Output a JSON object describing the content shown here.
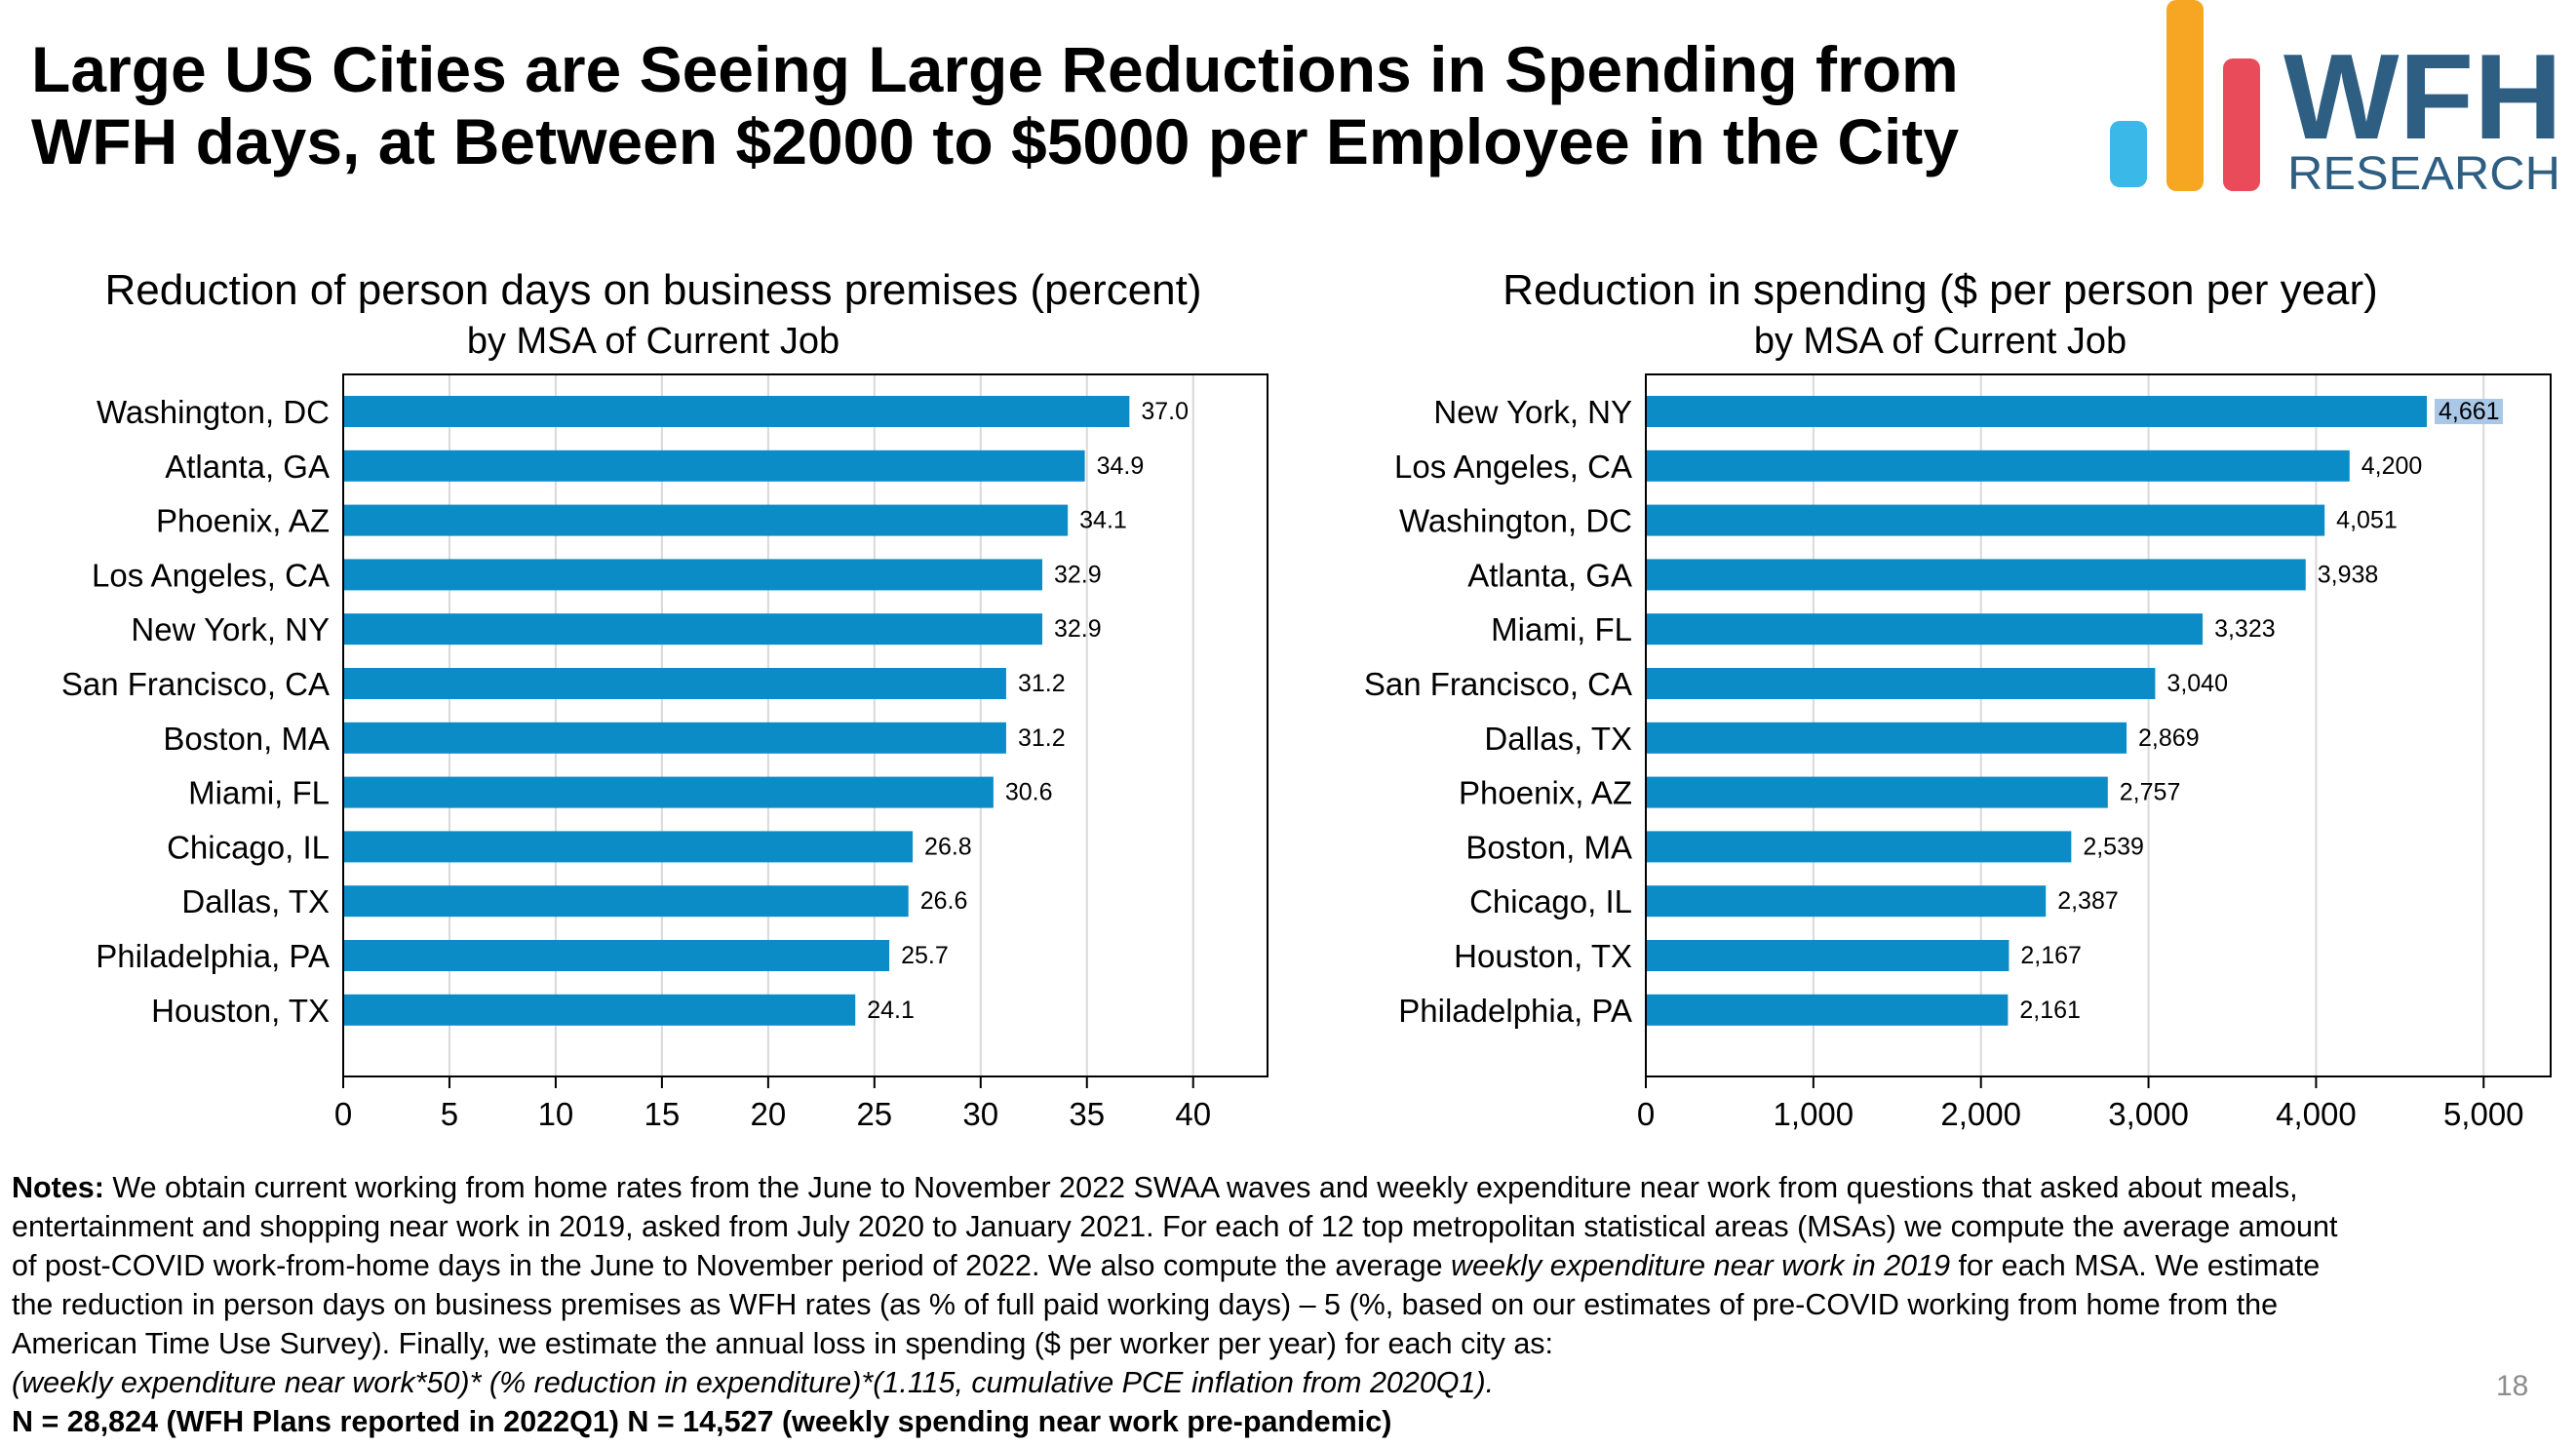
{
  "title": {
    "line1": "Large US Cities are Seeing Large Reductions in Spending from",
    "line2": "WFH days, at Between $2000 to $5000 per Employee in the City"
  },
  "logo": {
    "word": "WFH",
    "sub": "RESEARCH",
    "colors": {
      "blue_bar": "#3AB8E8",
      "orange_bar": "#F6A623",
      "red_bar": "#EA4B5A",
      "text": "#2E5F83"
    }
  },
  "colors": {
    "bar": "#0B8CC6",
    "grid": "#d9d9d9",
    "axis": "#000000",
    "highlight": "#A9C8E8"
  },
  "chart_data": [
    {
      "type": "bar",
      "orientation": "horizontal",
      "title": "Reduction of person days on business premises (percent)",
      "subtitle": "by MSA of Current Job",
      "categories": [
        "Washington, DC",
        "Atlanta, GA",
        "Phoenix, AZ",
        "Los Angeles, CA",
        "New York, NY",
        "San Francisco, CA",
        "Boston, MA",
        "Miami, FL",
        "Chicago, IL",
        "Dallas, TX",
        "Philadelphia, PA",
        "Houston, TX"
      ],
      "values": [
        37.0,
        34.9,
        34.1,
        32.9,
        32.9,
        31.2,
        31.2,
        30.6,
        26.8,
        26.6,
        25.7,
        24.1
      ],
      "value_labels": [
        "37.0",
        "34.9",
        "34.1",
        "32.9",
        "32.9",
        "31.2",
        "31.2",
        "30.6",
        "26.8",
        "26.6",
        "25.7",
        "24.1"
      ],
      "xlim": [
        0,
        43.5
      ],
      "ticks": [
        0,
        5,
        10,
        15,
        20,
        25,
        30,
        35,
        40
      ],
      "tick_labels": [
        "0",
        "5",
        "10",
        "15",
        "20",
        "25",
        "30",
        "35",
        "40"
      ],
      "grid": true
    },
    {
      "type": "bar",
      "orientation": "horizontal",
      "title": "Reduction in spending ($ per person per year)",
      "subtitle": "by MSA of Current Job",
      "categories": [
        "New York, NY",
        "Los Angeles, CA",
        "Washington, DC",
        "Atlanta, GA",
        "Miami, FL",
        "San Francisco, CA",
        "Dallas, TX",
        "Phoenix, AZ",
        "Boston, MA",
        "Chicago, IL",
        "Houston, TX",
        "Philadelphia, PA"
      ],
      "values": [
        4661,
        4200,
        4051,
        3938,
        3323,
        3040,
        2869,
        2757,
        2539,
        2387,
        2167,
        2161
      ],
      "value_labels": [
        "4,661",
        "4,200",
        "4,051",
        "3,938",
        "3,323",
        "3,040",
        "2,869",
        "2,757",
        "2,539",
        "2,387",
        "2,167",
        "2,161"
      ],
      "highlight_index": 0,
      "xlim": [
        0,
        5400
      ],
      "ticks": [
        0,
        1000,
        2000,
        3000,
        4000,
        5000
      ],
      "tick_labels": [
        "0",
        "1,000",
        "2,000",
        "3,000",
        "4,000",
        "5,000"
      ],
      "grid": true
    }
  ],
  "notes": {
    "label": "Notes:",
    "line1": " We obtain current working from home rates from the June to November 2022 SWAA waves and weekly expenditure near work from questions that asked about meals,",
    "line2": "entertainment and shopping near work in 2019, asked from July 2020 to January 2021.  For each of 12 top metropolitan statistical areas (MSAs) we compute the average amount",
    "line3a": "of post-COVID work-from-home days in the June to November period of 2022. We also compute the average ",
    "line3b": "weekly expenditure near work in 2019",
    "line3c": " for each MSA. We estimate",
    "line4": "the reduction in person days on business premises as WFH rates (as % of full paid working days) – 5 (%, based on our estimates of pre-COVID working from home from the",
    "line5": "American Time Use Survey). Finally, we estimate the annual loss in spending ($ per worker per year) for each city as:",
    "formula": "(weekly expenditure near work*50)* (% reduction in expenditure)*(1.115, cumulative PCE inflation from 2020Q1).",
    "sample": "N = 28,824 (WFH Plans reported in 2022Q1) N = 14,527 (weekly spending near work pre-pandemic)"
  },
  "page_number": "18"
}
